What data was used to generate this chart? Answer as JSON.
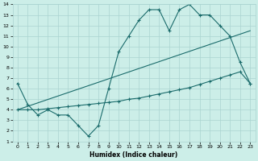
{
  "xlabel": "Humidex (Indice chaleur)",
  "bg_color": "#cceee8",
  "line_color": "#1a6b6b",
  "grid_color": "#aad4d0",
  "xlim": [
    -0.5,
    23.5
  ],
  "ylim": [
    1,
    14
  ],
  "xticks": [
    0,
    1,
    2,
    3,
    4,
    5,
    6,
    7,
    8,
    9,
    10,
    11,
    12,
    13,
    14,
    15,
    16,
    17,
    18,
    19,
    20,
    21,
    22,
    23
  ],
  "yticks": [
    1,
    2,
    3,
    4,
    5,
    6,
    7,
    8,
    9,
    10,
    11,
    12,
    13,
    14
  ],
  "line1_x": [
    0,
    1,
    2,
    3,
    4,
    5,
    6,
    7,
    8,
    9,
    10,
    11,
    12,
    13,
    14,
    15,
    16,
    17,
    18,
    19,
    20,
    21,
    22,
    23
  ],
  "line1_y": [
    6.5,
    4.5,
    3.5,
    4.0,
    3.5,
    3.5,
    2.5,
    1.5,
    2.5,
    6.0,
    9.5,
    11.0,
    12.5,
    13.5,
    13.5,
    11.5,
    13.5,
    14.0,
    13.0,
    13.0,
    12.0,
    11.0,
    8.5,
    6.5
  ],
  "line2_x": [
    0,
    1,
    2,
    3,
    4,
    5,
    6,
    7,
    8,
    9,
    10,
    11,
    12,
    13,
    14,
    15,
    16,
    17,
    18,
    19,
    20,
    21,
    22,
    23
  ],
  "line2_y": [
    4.0,
    4.0,
    4.0,
    4.1,
    4.2,
    4.3,
    4.4,
    4.5,
    4.6,
    4.7,
    4.8,
    5.0,
    5.1,
    5.3,
    5.5,
    5.7,
    5.9,
    6.1,
    6.4,
    6.7,
    7.0,
    7.3,
    7.6,
    6.5
  ],
  "line3_x": [
    0,
    23
  ],
  "line3_y": [
    4.0,
    11.5
  ]
}
